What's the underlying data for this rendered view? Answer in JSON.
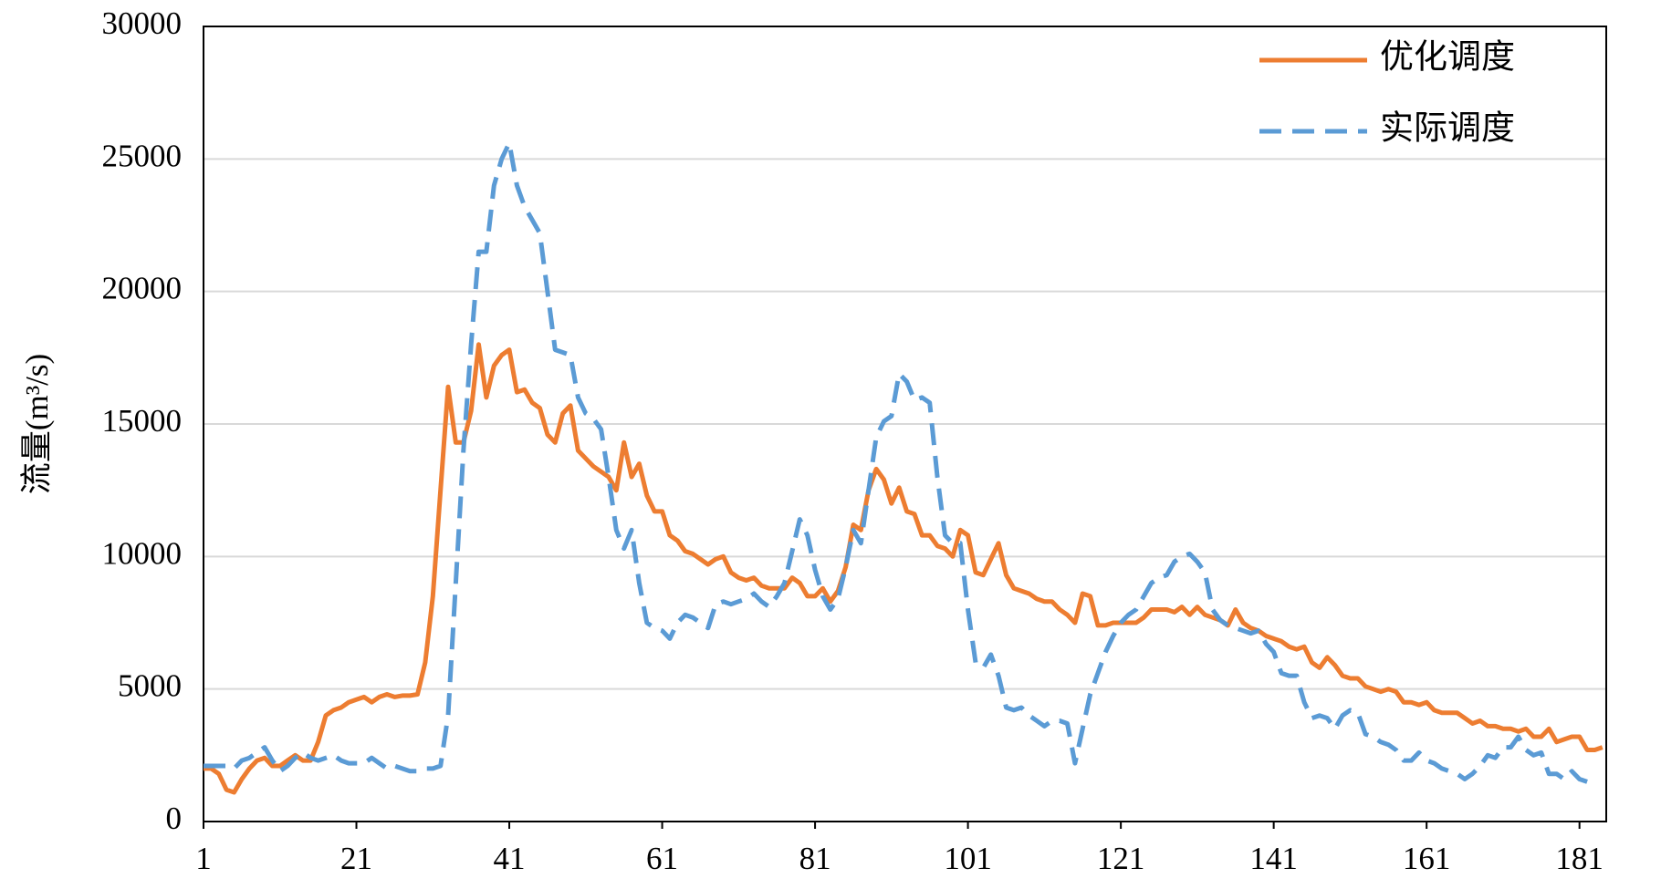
{
  "chart_data": {
    "type": "line",
    "ylabel": "流量(m³/s)",
    "x": [
      1,
      2,
      3,
      4,
      5,
      6,
      7,
      8,
      9,
      10,
      11,
      12,
      13,
      14,
      15,
      16,
      17,
      18,
      19,
      20,
      21,
      22,
      23,
      24,
      25,
      26,
      27,
      28,
      29,
      30,
      31,
      32,
      33,
      34,
      35,
      36,
      37,
      38,
      39,
      40,
      41,
      42,
      43,
      44,
      45,
      46,
      47,
      48,
      49,
      50,
      51,
      52,
      53,
      54,
      55,
      56,
      57,
      58,
      59,
      60,
      61,
      62,
      63,
      64,
      65,
      66,
      67,
      68,
      69,
      70,
      71,
      72,
      73,
      74,
      75,
      76,
      77,
      78,
      79,
      80,
      81,
      82,
      83,
      84,
      85,
      86,
      87,
      88,
      89,
      90,
      91,
      92,
      93,
      94,
      95,
      96,
      97,
      98,
      99,
      100,
      101,
      102,
      103,
      104,
      105,
      106,
      107,
      108,
      109,
      110,
      111,
      112,
      113,
      114,
      115,
      116,
      117,
      118,
      119,
      120,
      121,
      122,
      123,
      124,
      125,
      126,
      127,
      128,
      129,
      130,
      131,
      132,
      133,
      134,
      135,
      136,
      137,
      138,
      139,
      140,
      141,
      142,
      143,
      144,
      145,
      146,
      147,
      148,
      149,
      150,
      151,
      152,
      153,
      154,
      155,
      156,
      157,
      158,
      159,
      160,
      161,
      162,
      163,
      164,
      165,
      166,
      167,
      168,
      169,
      170,
      171,
      172,
      173,
      174,
      175,
      176,
      177,
      178,
      179,
      180,
      181,
      182,
      183,
      184
    ],
    "series": [
      {
        "name": "优化调度",
        "color": "#ed7d31",
        "dash": false,
        "values": [
          2000,
          2000,
          1800,
          1200,
          1100,
          1600,
          2000,
          2300,
          2400,
          2100,
          2100,
          2300,
          2500,
          2300,
          2300,
          3000,
          4000,
          4200,
          4300,
          4500,
          4600,
          4700,
          4500,
          4700,
          4800,
          4700,
          4750,
          4750,
          4800,
          6000,
          8500,
          12500,
          16400,
          14300,
          14300,
          15500,
          18000,
          16000,
          17200,
          17600,
          17800,
          16200,
          16300,
          15800,
          15600,
          14600,
          14300,
          15400,
          15700,
          14000,
          13700,
          13400,
          13200,
          13000,
          12500,
          14300,
          13000,
          13500,
          12300,
          11700,
          11700,
          10800,
          10600,
          10200,
          10100,
          9900,
          9700,
          9900,
          10000,
          9400,
          9200,
          9100,
          9200,
          8900,
          8800,
          8800,
          8800,
          9200,
          9000,
          8500,
          8500,
          8800,
          8300,
          8700,
          9600,
          11200,
          11000,
          12500,
          13300,
          12900,
          12000,
          12600,
          11700,
          11600,
          10800,
          10800,
          10400,
          10300,
          10000,
          11000,
          10800,
          9400,
          9300,
          9900,
          10500,
          9300,
          8800,
          8700,
          8600,
          8400,
          8300,
          8300,
          8000,
          7800,
          7500,
          8600,
          8500,
          7400,
          7400,
          7500,
          7500,
          7500,
          7500,
          7700,
          8000,
          8000,
          8000,
          7900,
          8100,
          7800,
          8100,
          7800,
          7700,
          7600,
          7400,
          8000,
          7500,
          7300,
          7200,
          7000,
          6900,
          6800,
          6600,
          6500,
          6600,
          6000,
          5800,
          6200,
          5900,
          5500,
          5400,
          5400,
          5100,
          5000,
          4900,
          5000,
          4900,
          4500,
          4500,
          4400,
          4500,
          4200,
          4100,
          4100,
          4100,
          3900,
          3700,
          3800,
          3600,
          3600,
          3500,
          3500,
          3400,
          3500,
          3200,
          3200,
          3500,
          3000,
          3100,
          3200,
          3200,
          2700,
          2700,
          2800
        ]
      },
      {
        "name": "实际调度",
        "color": "#5b9bd5",
        "dash": true,
        "values": [
          2100,
          2100,
          2100,
          2100,
          2000,
          2300,
          2400,
          2600,
          2800,
          2300,
          1900,
          2100,
          2400,
          2600,
          2400,
          2300,
          2400,
          2500,
          2300,
          2200,
          2200,
          2200,
          2400,
          2200,
          2000,
          2100,
          2000,
          1900,
          1900,
          2000,
          2000,
          2100,
          4000,
          9000,
          14000,
          18000,
          21500,
          21500,
          24000,
          25000,
          25600,
          24000,
          23200,
          22700,
          22200,
          20000,
          17800,
          17700,
          17600,
          16000,
          15400,
          15200,
          14800,
          13000,
          11000,
          10300,
          11000,
          9000,
          7500,
          7300,
          7200,
          6900,
          7500,
          7800,
          7700,
          7500,
          7300,
          8200,
          8300,
          8200,
          8300,
          8400,
          8600,
          8300,
          8100,
          8500,
          9000,
          10200,
          11400,
          10800,
          9500,
          8500,
          8000,
          8400,
          9600,
          11000,
          10500,
          12500,
          14500,
          15100,
          15300,
          16900,
          16600,
          15900,
          16000,
          15800,
          13000,
          10800,
          10500,
          10500,
          8000,
          6000,
          5800,
          6300,
          5500,
          4300,
          4200,
          4300,
          4000,
          3800,
          3600,
          3800,
          3800,
          3700,
          2200,
          3500,
          4800,
          5600,
          6400,
          7000,
          7500,
          7800,
          8000,
          8500,
          9000,
          9200,
          9300,
          9800,
          10000,
          10100,
          9800,
          9400,
          8000,
          7600,
          7400,
          7300,
          7200,
          7100,
          7200,
          6700,
          6400,
          5600,
          5500,
          5500,
          4500,
          3900,
          4000,
          3900,
          3500,
          4000,
          4200,
          4100,
          3300,
          3200,
          3000,
          2900,
          2700,
          2300,
          2300,
          2600,
          2300,
          2200,
          2000,
          1900,
          1800,
          1600,
          1800,
          2100,
          2500,
          2400,
          2800,
          2800,
          3200,
          2700,
          2500,
          2600,
          1800,
          1800,
          1600,
          1900,
          1600,
          1500,
          null,
          null
        ]
      }
    ],
    "xlim": [
      1,
      184.5
    ],
    "xticks": [
      1,
      21,
      41,
      61,
      81,
      101,
      121,
      141,
      161,
      181
    ],
    "ylim": [
      0,
      30000
    ],
    "yticks": [
      0,
      5000,
      10000,
      15000,
      20000,
      25000,
      30000
    ],
    "grid": true,
    "legend": "top-right"
  }
}
